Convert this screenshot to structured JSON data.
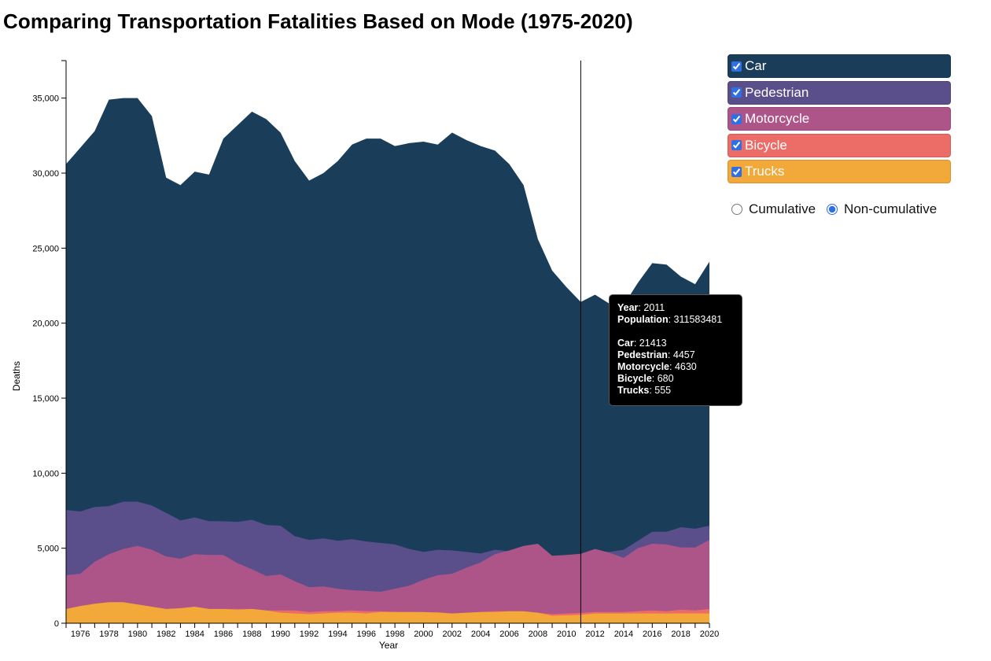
{
  "title": "Comparing Transportation Fatalities Based on Mode (1975-2020)",
  "legend": [
    {
      "label": "Car",
      "color": "#1a3d5a",
      "checked": true
    },
    {
      "label": "Pedestrian",
      "color": "#5a4f8a",
      "checked": true
    },
    {
      "label": "Motorcycle",
      "color": "#ad5589",
      "checked": true
    },
    {
      "label": "Bicycle",
      "color": "#ec6d67",
      "checked": true
    },
    {
      "label": "Trucks",
      "color": "#f2a93a",
      "checked": true
    }
  ],
  "mode_toggle": {
    "options": [
      "Cumulative",
      "Non-cumulative"
    ],
    "selected": "Non-cumulative"
  },
  "tooltip": {
    "year_label": "Year",
    "year": "2011",
    "population_label": "Population",
    "population": "311583481",
    "rows": [
      {
        "label": "Car",
        "value": "21413"
      },
      {
        "label": "Pedestrian",
        "value": "4457"
      },
      {
        "label": "Motorcycle",
        "value": "4630"
      },
      {
        "label": "Bicycle",
        "value": "680"
      },
      {
        "label": "Trucks",
        "value": "555"
      }
    ]
  },
  "chart_data": {
    "type": "area",
    "title": "Comparing Transportation Fatalities Based on Mode (1975-2020)",
    "xlabel": "Year",
    "ylabel": "Deaths",
    "xlim": [
      1975,
      2020
    ],
    "ylim": [
      0,
      37500
    ],
    "x_ticks": [
      1976,
      1978,
      1980,
      1982,
      1984,
      1986,
      1988,
      1990,
      1992,
      1994,
      1996,
      1998,
      2000,
      2002,
      2004,
      2006,
      2008,
      2010,
      2012,
      2014,
      2016,
      2018,
      2020
    ],
    "y_ticks": [
      0,
      5000,
      10000,
      15000,
      20000,
      25000,
      30000,
      35000
    ],
    "y_tick_labels": [
      "0",
      "5,000",
      "10,000",
      "15,000",
      "20,000",
      "25,000",
      "30,000",
      "35,000"
    ],
    "stacked": false,
    "legend_position": "right",
    "hover_year": 2011,
    "x": [
      1975,
      1976,
      1977,
      1978,
      1979,
      1980,
      1981,
      1982,
      1983,
      1984,
      1985,
      1986,
      1987,
      1988,
      1989,
      1990,
      1991,
      1992,
      1993,
      1994,
      1995,
      1996,
      1997,
      1998,
      1999,
      2000,
      2001,
      2002,
      2003,
      2004,
      2005,
      2006,
      2007,
      2008,
      2009,
      2010,
      2011,
      2012,
      2013,
      2014,
      2015,
      2016,
      2017,
      2018,
      2019,
      2020
    ],
    "series": [
      {
        "name": "Car",
        "color": "#1a3d5a",
        "values": [
          30600,
          31700,
          32800,
          34900,
          35000,
          35000,
          33800,
          29700,
          29200,
          30100,
          29900,
          32300,
          33200,
          34100,
          33600,
          32700,
          30800,
          29500,
          30000,
          30800,
          31900,
          32300,
          32300,
          31800,
          32000,
          32100,
          31900,
          32700,
          32200,
          31800,
          31500,
          30600,
          29200,
          25600,
          23500,
          22400,
          21413,
          21900,
          21300,
          21200,
          22700,
          24000,
          23900,
          23100,
          22600,
          24100
        ]
      },
      {
        "name": "Pedestrian",
        "color": "#5a4f8a",
        "values": [
          7550,
          7450,
          7750,
          7800,
          8100,
          8100,
          7850,
          7350,
          6850,
          7050,
          6800,
          6800,
          6750,
          6900,
          6550,
          6500,
          5800,
          5550,
          5650,
          5500,
          5600,
          5450,
          5350,
          5250,
          4950,
          4750,
          4900,
          4850,
          4750,
          4650,
          4900,
          4800,
          4700,
          4450,
          4100,
          4300,
          4457,
          4800,
          4750,
          4900,
          5500,
          6100,
          6100,
          6400,
          6300,
          6500
        ]
      },
      {
        "name": "Motorcycle",
        "color": "#ad5589",
        "values": [
          3200,
          3300,
          4100,
          4600,
          4950,
          5150,
          4900,
          4450,
          4300,
          4600,
          4550,
          4550,
          4000,
          3600,
          3150,
          3250,
          2800,
          2400,
          2450,
          2300,
          2200,
          2150,
          2100,
          2300,
          2500,
          2900,
          3200,
          3300,
          3700,
          4050,
          4600,
          4850,
          5150,
          5300,
          4500,
          4550,
          4630,
          4950,
          4700,
          4350,
          5000,
          5300,
          5250,
          5050,
          5050,
          5550
        ]
      },
      {
        "name": "Bicycle",
        "color": "#ec6d67",
        "values": [
          950,
          950,
          950,
          950,
          950,
          950,
          950,
          900,
          850,
          850,
          900,
          950,
          950,
          950,
          850,
          850,
          850,
          750,
          800,
          800,
          850,
          800,
          800,
          750,
          750,
          700,
          750,
          650,
          650,
          750,
          800,
          800,
          700,
          700,
          600,
          650,
          680,
          750,
          750,
          750,
          800,
          850,
          800,
          900,
          850,
          950
        ]
      },
      {
        "name": "Trucks",
        "color": "#f2a93a",
        "values": [
          950,
          1150,
          1300,
          1400,
          1400,
          1250,
          1100,
          950,
          1000,
          1100,
          950,
          950,
          900,
          950,
          850,
          700,
          650,
          600,
          650,
          700,
          700,
          650,
          750,
          750,
          750,
          750,
          700,
          650,
          700,
          750,
          750,
          800,
          800,
          700,
          500,
          530,
          555,
          650,
          650,
          650,
          650,
          650,
          650,
          650,
          650,
          650
        ]
      }
    ]
  }
}
